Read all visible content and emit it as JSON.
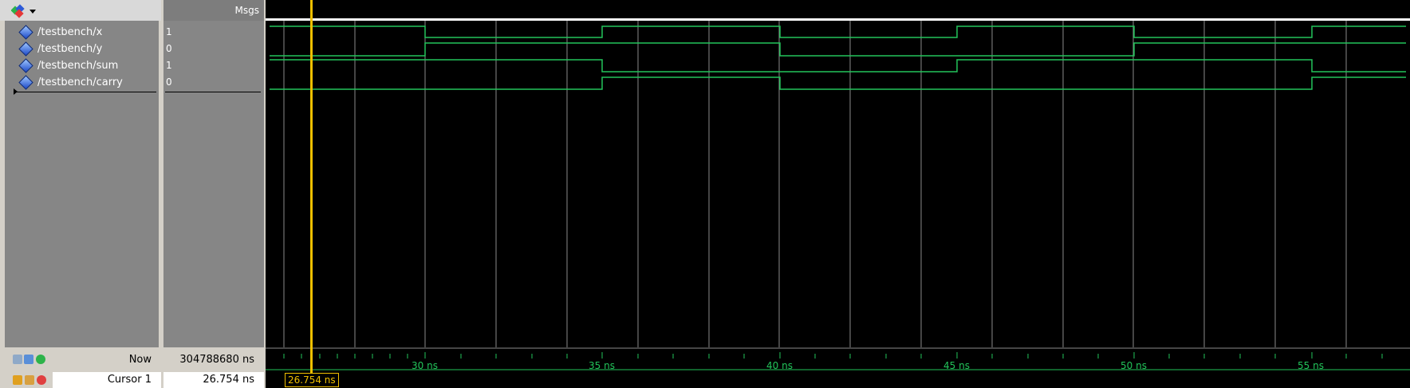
{
  "header": {
    "msgs_label": "Msgs"
  },
  "signals": [
    {
      "name": "/testbench/x",
      "value": "1"
    },
    {
      "name": "/testbench/y",
      "value": "0"
    },
    {
      "name": "/testbench/sum",
      "value": "1"
    },
    {
      "name": "/testbench/carry",
      "value": "0"
    }
  ],
  "bottom": {
    "now_label": "Now",
    "now_value": "304788680 ns",
    "cursor_label": "Cursor 1",
    "cursor_value": "26.754 ns",
    "cursor_box_value": "26.754 ns"
  },
  "timeline": {
    "ticks": [
      "30 ns",
      "35 ns",
      "40 ns",
      "45 ns",
      "50 ns",
      "55 ns"
    ]
  },
  "colors": {
    "wave": "#22c45a",
    "cursor": "#f0c000",
    "grid": "#8a8a8a"
  },
  "icons": [
    "wave-window-icon",
    "chevron-down-icon",
    "zoom-icon",
    "lock-icon",
    "edit-icon",
    "delete-icon"
  ]
}
